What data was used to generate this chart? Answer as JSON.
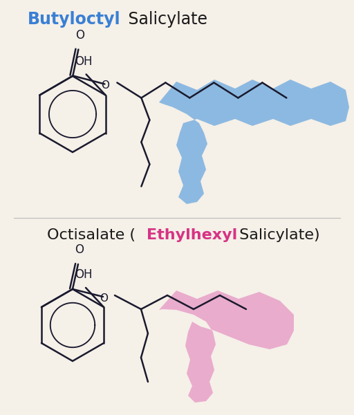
{
  "bg_color": "#f5f0e8",
  "title1_blue": "Butyloctyl",
  "title1_black": " Salicylate",
  "title1_blue_color": "#3a7fd5",
  "title1_black_color": "#1a1a1a",
  "title2_black1": "Octisalate (",
  "title2_pink": "Ethylhexyl",
  "title2_black2": " Salicylate)",
  "title2_pink_color": "#d63384",
  "title2_black_color": "#1a1a1a",
  "blob1_color": "#7ab0e0",
  "blob2_color": "#e8a0c8",
  "line_color": "#1a1a2e",
  "line_width": 1.8,
  "font_size_title": 17,
  "font_size_label": 11
}
